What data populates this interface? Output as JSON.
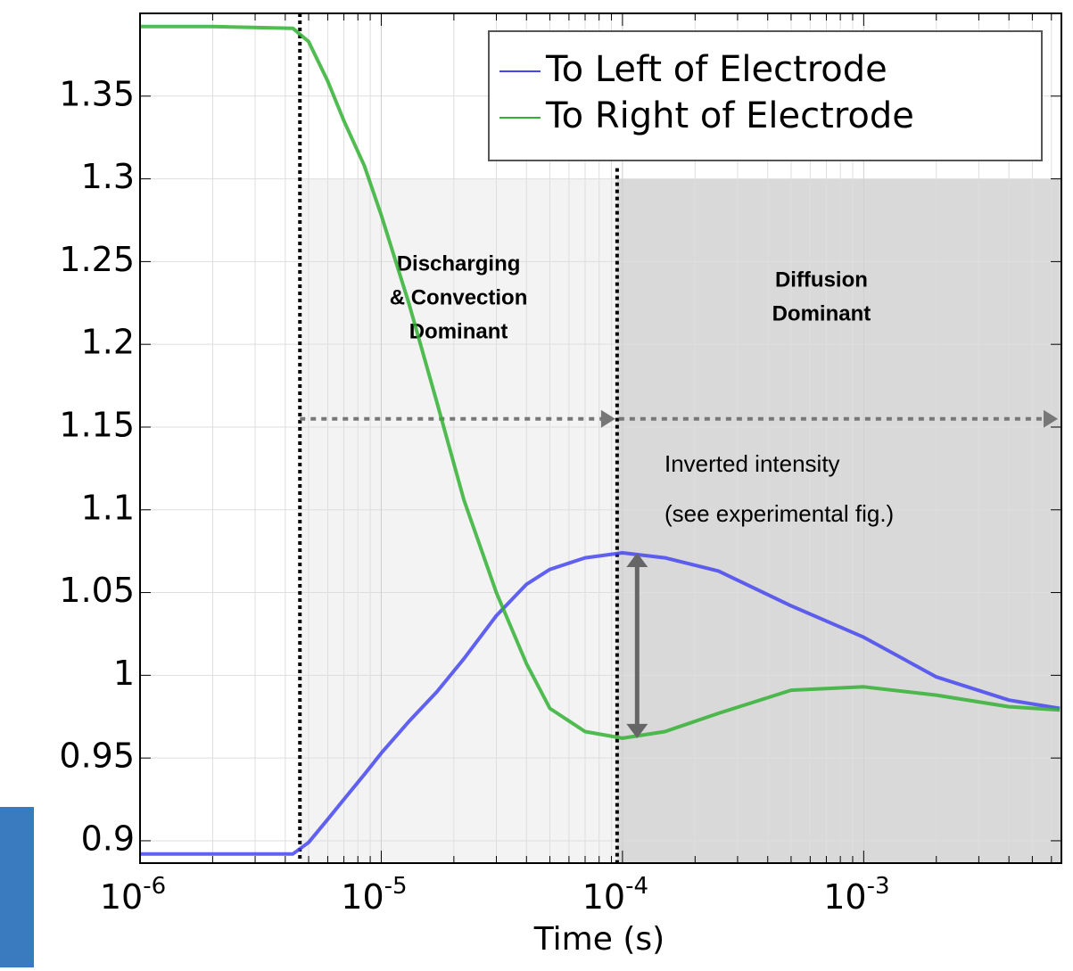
{
  "chart_data": {
    "type": "line",
    "x_label": "Time (s)",
    "log_x": true,
    "grid": true,
    "legend": "upper right",
    "xlim": [
      1e-06,
      0.0066
    ],
    "ylim": [
      0.8865,
      1.4
    ],
    "xticks": [
      {
        "value": 1e-06,
        "label": "10",
        "exponent": "-6"
      },
      {
        "value": 1e-05,
        "label": "10",
        "exponent": "-5"
      },
      {
        "value": 0.0001,
        "label": "10",
        "exponent": "-4"
      },
      {
        "value": 0.001,
        "label": "10",
        "exponent": "-3"
      }
    ],
    "yticks": [
      0.9,
      0.95,
      1,
      1.05,
      1.1,
      1.15,
      1.2,
      1.25,
      1.3,
      1.35
    ],
    "x": [
      1e-06,
      2e-06,
      4.3e-06,
      5e-06,
      6e-06,
      7e-06,
      8.5e-06,
      1e-05,
      1.3e-05,
      1.7e-05,
      2.2e-05,
      3e-05,
      4e-05,
      5e-05,
      7e-05,
      0.0001,
      0.00015,
      0.00025,
      0.0005,
      0.001,
      0.002,
      0.004,
      0.0065
    ],
    "series": [
      {
        "name": "To Left of Electrode",
        "color": "#4646f0",
        "values": [
          0.892,
          0.892,
          0.892,
          0.899,
          0.913,
          0.925,
          0.94,
          0.953,
          0.972,
          0.99,
          1.01,
          1.036,
          1.055,
          1.064,
          1.071,
          1.074,
          1.071,
          1.063,
          1.042,
          1.023,
          0.999,
          0.985,
          0.98
        ]
      },
      {
        "name": "To Right of Electrode",
        "color": "#33b033",
        "values": [
          1.392,
          1.392,
          1.391,
          1.383,
          1.359,
          1.335,
          1.308,
          1.278,
          1.225,
          1.165,
          1.106,
          1.05,
          1.007,
          0.98,
          0.966,
          0.962,
          0.966,
          0.977,
          0.991,
          0.993,
          0.988,
          0.981,
          0.979
        ]
      }
    ],
    "regions": [
      {
        "x": [
          4.6e-06,
          9.5e-05
        ],
        "top": 1.3,
        "color": "#f3f3f3",
        "label": [
          "Discharging",
          "& Convection",
          "Dominant"
        ]
      },
      {
        "x": [
          9.5e-05,
          0.0066
        ],
        "top": 1.3,
        "color": "#d9d9d9",
        "label": [
          "Diffusion",
          "Dominant"
        ]
      }
    ],
    "annotation": [
      "Inverted intensity",
      "(see experimental fig.)"
    ],
    "annotation_level": 1.155,
    "difference_x": 0.000115
  }
}
